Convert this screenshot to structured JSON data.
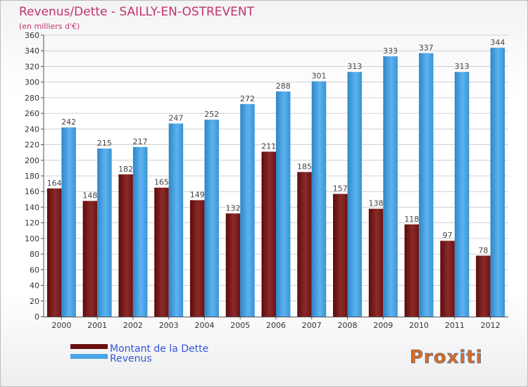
{
  "chart_data": {
    "type": "bar",
    "title": "Revenus/Dette - SAILLY-EN-OSTREVENT",
    "subtitle": "(en milliers d'€)",
    "categories": [
      "2000",
      "2001",
      "2002",
      "2003",
      "2004",
      "2005",
      "2006",
      "2007",
      "2008",
      "2009",
      "2010",
      "2011",
      "2012"
    ],
    "series": [
      {
        "name": "Montant de la Dette",
        "values": [
          164,
          148,
          182,
          165,
          149,
          132,
          211,
          185,
          157,
          138,
          118,
          97,
          78
        ],
        "color": "#7a1a1a"
      },
      {
        "name": "Revenus",
        "values": [
          242,
          215,
          217,
          247,
          252,
          272,
          288,
          301,
          313,
          333,
          337,
          313,
          344
        ],
        "color": "#4aa3e6"
      }
    ],
    "ylim": [
      0,
      360
    ],
    "ytick_step": 20,
    "grid": true,
    "legend_position": "bottom-left"
  },
  "colors": {
    "title": "#c0336f",
    "legend_text": "#3355dd",
    "axis_text": "#333333"
  },
  "logo_text": "Proxiti"
}
